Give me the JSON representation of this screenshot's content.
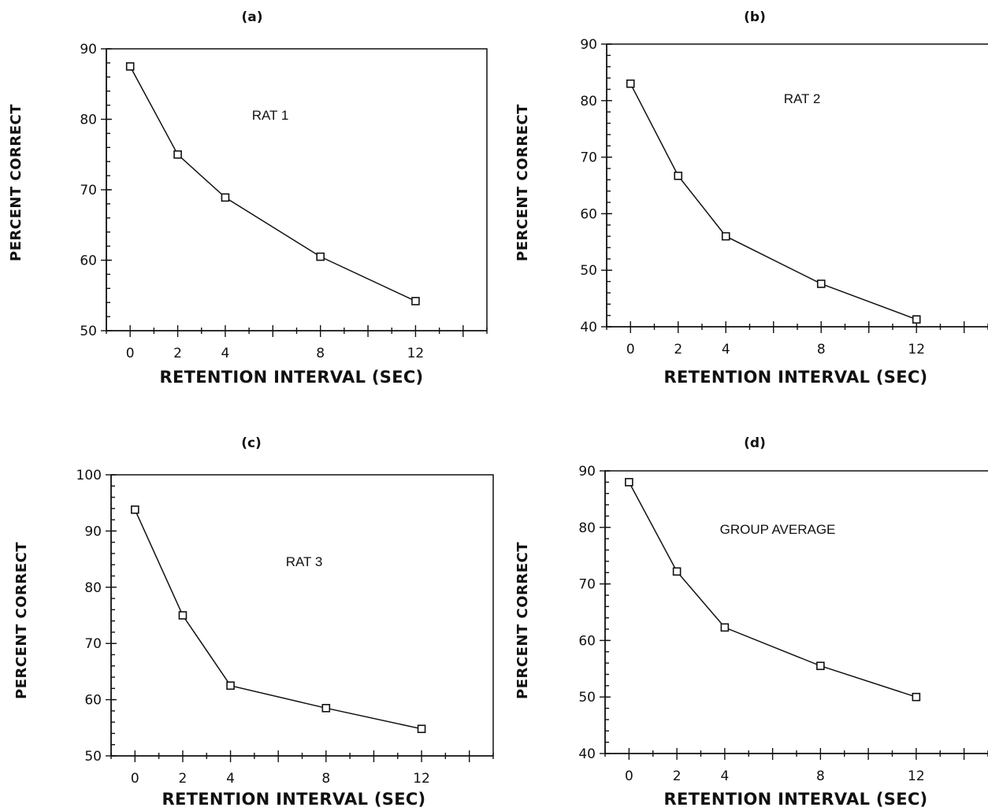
{
  "chart_data": [
    {
      "type": "line",
      "panel_label": "(a)",
      "annotation": "RAT 1",
      "xlabel": "RETENTION INTERVAL (SEC)",
      "ylabel": "PERCENT CORRECT",
      "xlim": [
        -1,
        15
      ],
      "ylim": [
        50,
        90
      ],
      "xticks": [
        0,
        2,
        4,
        8,
        12
      ],
      "yticks": [
        50,
        60,
        70,
        80,
        90
      ],
      "x": [
        0,
        2,
        4,
        8,
        12
      ],
      "y": [
        87.5,
        75.0,
        68.9,
        60.5,
        54.2
      ],
      "grid": false
    },
    {
      "type": "line",
      "panel_label": "(b)",
      "annotation": "RAT 2",
      "xlabel": "RETENTION INTERVAL (SEC)",
      "ylabel": "PERCENT CORRECT",
      "xlim": [
        -1,
        15
      ],
      "ylim": [
        40,
        90
      ],
      "xticks": [
        0,
        2,
        4,
        8,
        12
      ],
      "yticks": [
        40,
        50,
        60,
        70,
        80,
        90
      ],
      "x": [
        0,
        2,
        4,
        8,
        12
      ],
      "y": [
        83.0,
        66.7,
        56.0,
        47.6,
        41.3
      ],
      "grid": false
    },
    {
      "type": "line",
      "panel_label": "(c)",
      "annotation": "RAT 3",
      "xlabel": "RETENTION INTERVAL (SEC)",
      "ylabel": "PERCENT CORRECT",
      "xlim": [
        -1,
        15
      ],
      "ylim": [
        50,
        100
      ],
      "xticks": [
        0,
        2,
        4,
        8,
        12
      ],
      "yticks": [
        50,
        60,
        70,
        80,
        90,
        100
      ],
      "x": [
        0,
        2,
        4,
        8,
        12
      ],
      "y": [
        93.8,
        75.0,
        62.5,
        58.5,
        54.8
      ],
      "grid": false
    },
    {
      "type": "line",
      "panel_label": "(d)",
      "annotation": "GROUP AVERAGE",
      "xlabel": "RETENTION INTERVAL (SEC)",
      "ylabel": "PERCENT CORRECT",
      "xlim": [
        -1,
        15
      ],
      "ylim": [
        40,
        90
      ],
      "xticks": [
        0,
        2,
        4,
        8,
        12
      ],
      "yticks": [
        40,
        50,
        60,
        70,
        80,
        90
      ],
      "x": [
        0,
        2,
        4,
        8,
        12
      ],
      "y": [
        88.0,
        72.2,
        62.3,
        55.5,
        50.0
      ],
      "grid": false
    }
  ]
}
